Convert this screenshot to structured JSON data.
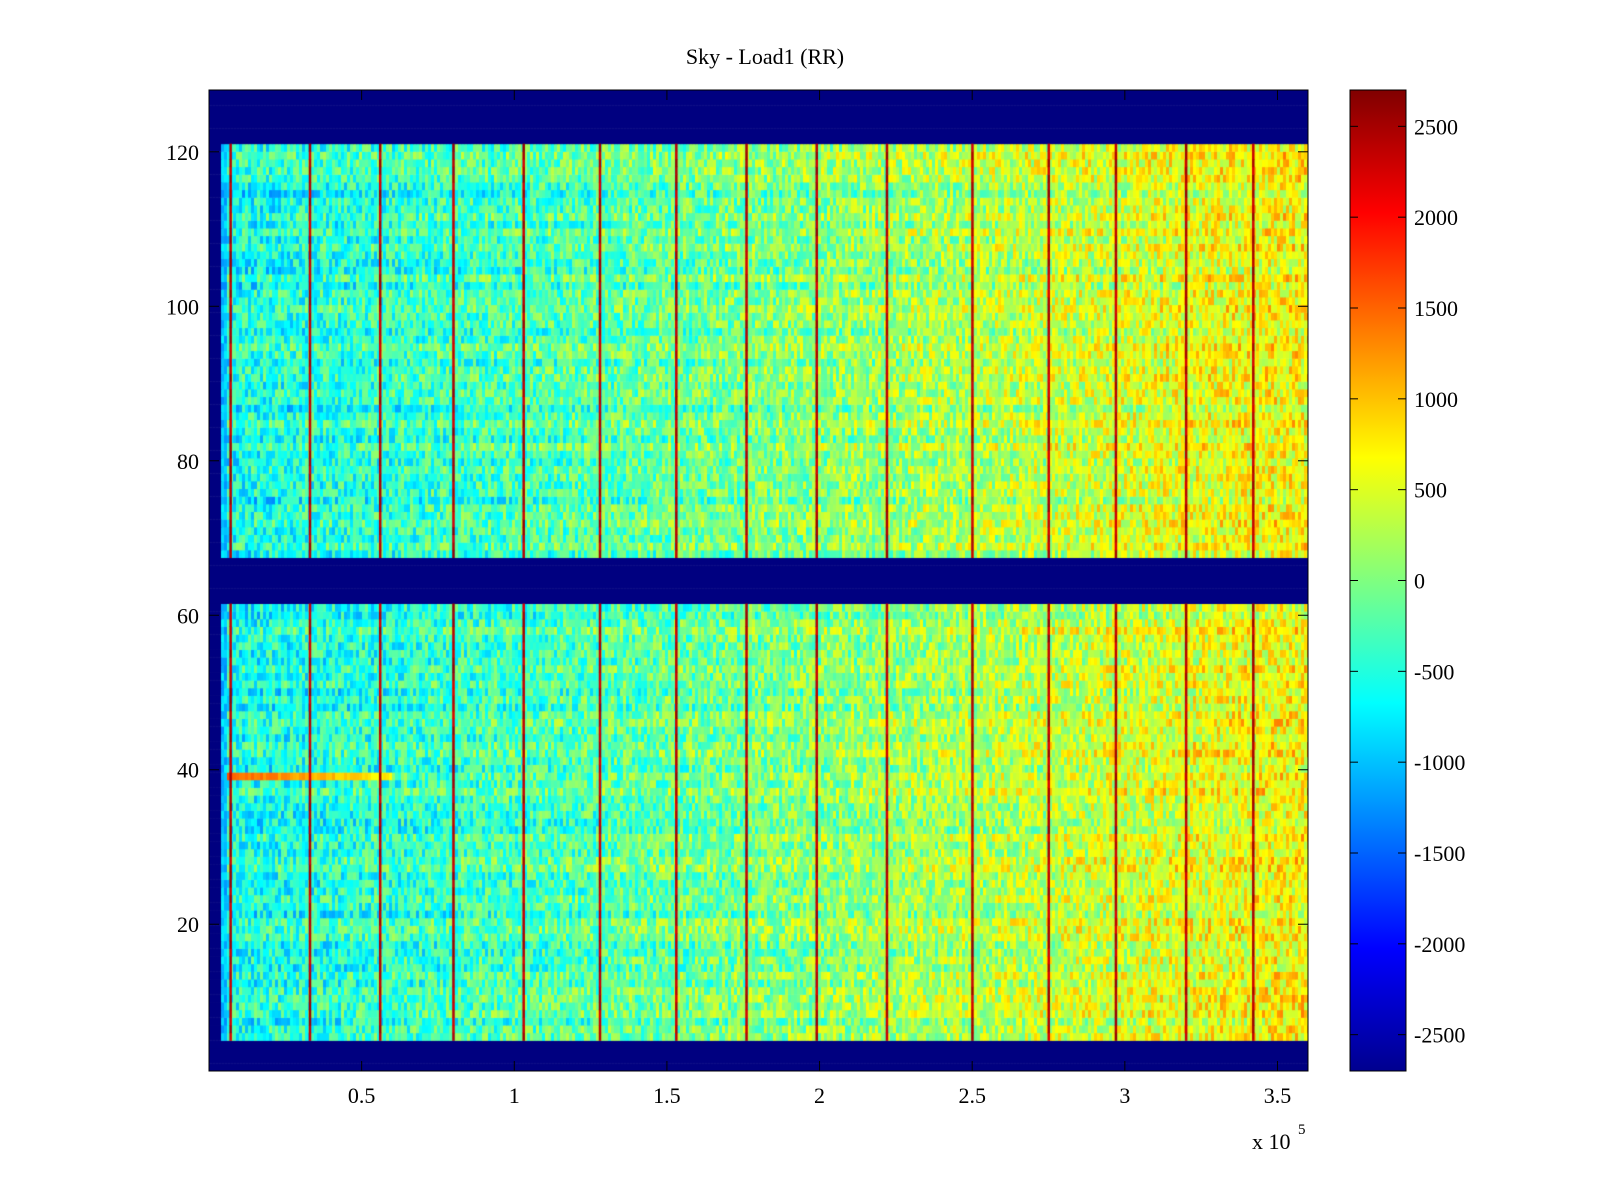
{
  "chart_data": {
    "type": "heatmap",
    "title": "Sky - Load1 (RR)",
    "xlabel": "",
    "ylabel": "",
    "xlim": [
      0,
      360000
    ],
    "ylim": [
      1,
      128
    ],
    "x_ticks": [
      50000,
      100000,
      150000,
      200000,
      250000,
      300000,
      350000
    ],
    "x_tick_labels": [
      "0.5",
      "1",
      "1.5",
      "2",
      "2.5",
      "3",
      "3.5"
    ],
    "x_exponent_label": "x 10",
    "x_exponent": "5",
    "y_ticks": [
      20,
      40,
      60,
      80,
      100,
      120
    ],
    "y_tick_labels": [
      "20",
      "40",
      "60",
      "80",
      "100",
      "120"
    ],
    "colorbar": {
      "colormap": "jet",
      "clim": [
        -2700,
        2700
      ],
      "ticks": [
        -2500,
        -2000,
        -1500,
        -1000,
        -500,
        0,
        500,
        1000,
        1500,
        2000,
        2500
      ],
      "tick_labels": [
        "-2500",
        "-2000",
        "-1500",
        "-1000",
        "-500",
        "0",
        "500",
        "1000",
        "1500",
        "2000",
        "2500"
      ]
    },
    "masked_channel_ranges": [
      [
        1,
        4
      ],
      [
        62,
        67
      ],
      [
        122,
        128
      ]
    ],
    "masked_value": -2700,
    "value_trend": {
      "x": [
        0,
        120000,
        240000,
        360000
      ],
      "mean": [
        -600,
        -250,
        200,
        700
      ]
    },
    "vertical_spikes_x": [
      7000,
      33000,
      56000,
      80000,
      103000,
      128000,
      153000,
      176000,
      199000,
      222000,
      250000,
      275000,
      297000,
      320000,
      342000
    ],
    "spike_value": 2600,
    "bright_channel": {
      "channel": 39,
      "x_range": [
        0,
        60000
      ],
      "value": 1600
    }
  },
  "colors": {
    "background": "#ffffff",
    "axis": "#000000",
    "mask": "#00008f"
  }
}
